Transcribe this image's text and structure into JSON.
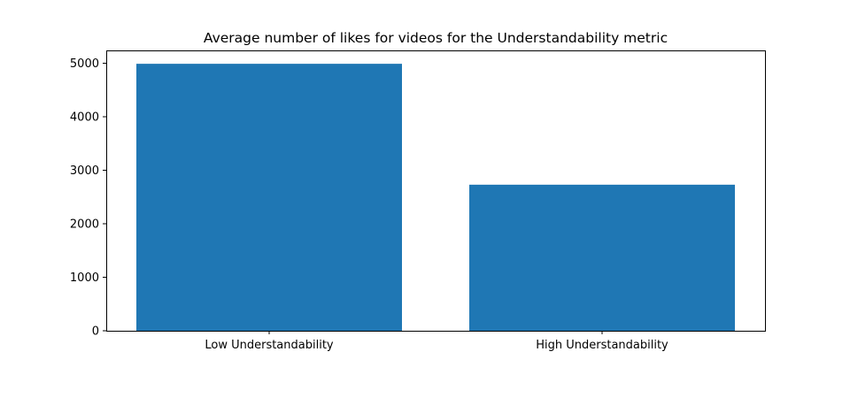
{
  "chart_data": {
    "type": "bar",
    "title": "Average number of likes for videos for the Understandability metric",
    "xlabel": "",
    "ylabel": "",
    "categories": [
      "Low Understandability",
      "High Understandability"
    ],
    "values": [
      4990,
      2730
    ],
    "ylim": [
      0,
      5240
    ],
    "yticks": [
      0,
      1000,
      2000,
      3000,
      4000,
      5000
    ],
    "ytick_labels": [
      "0",
      "1000",
      "2000",
      "3000",
      "4000",
      "5000"
    ],
    "bar_color": "#1f77b4",
    "grid": false,
    "legend": "none"
  }
}
